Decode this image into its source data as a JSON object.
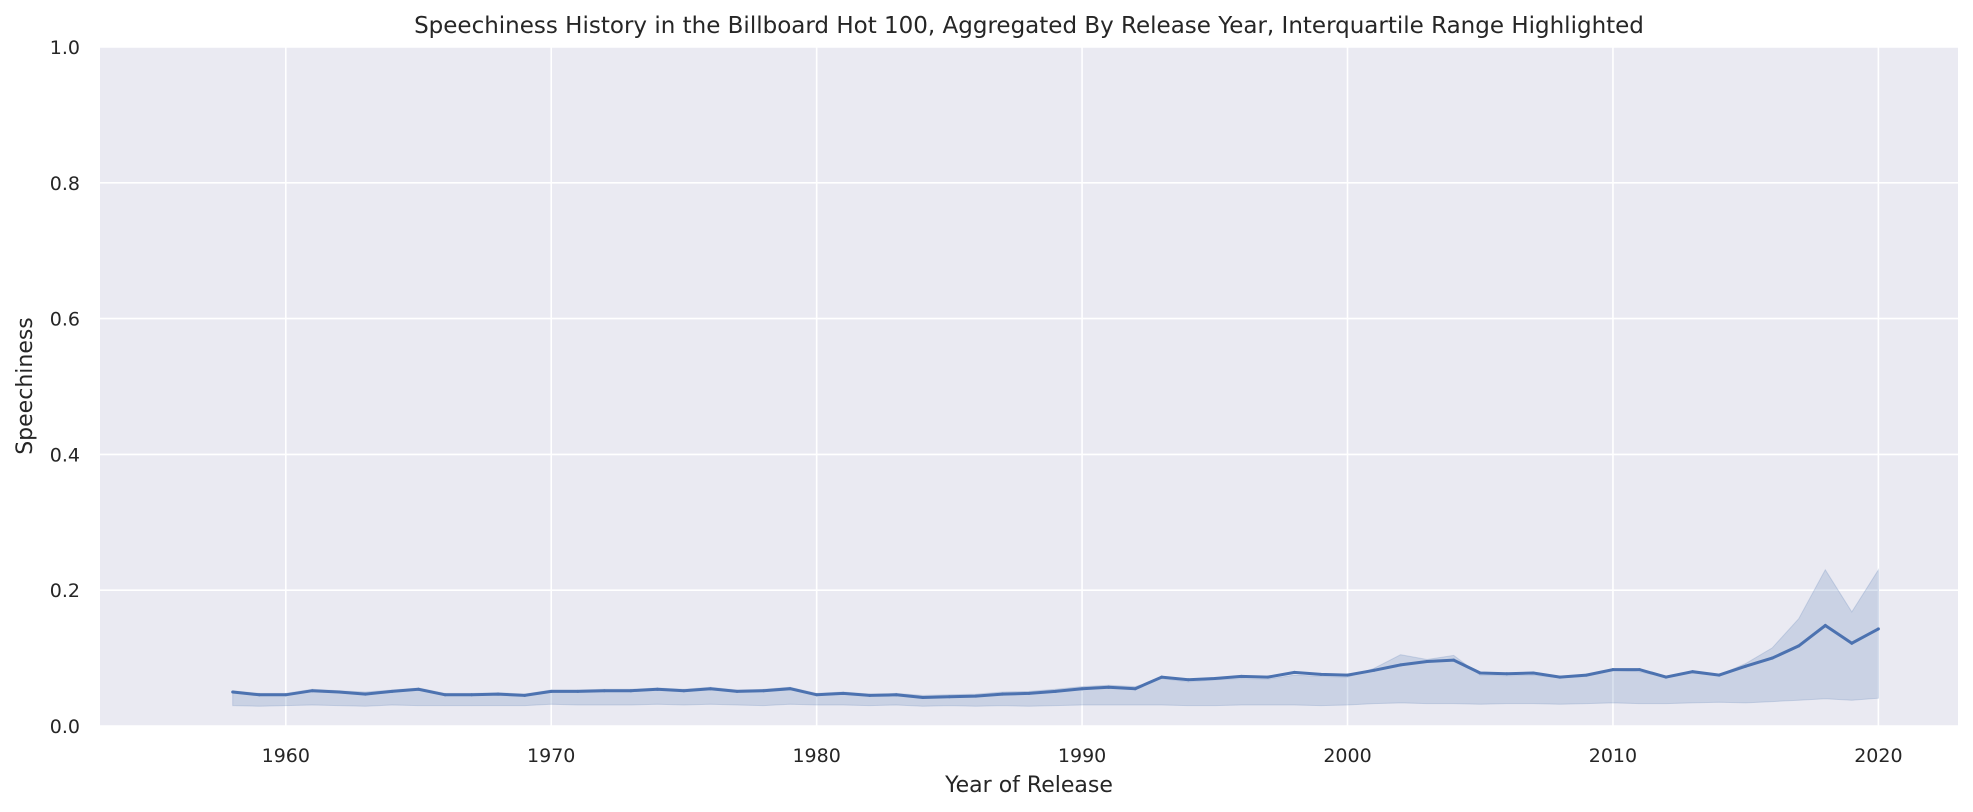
{
  "chart_data": {
    "type": "line",
    "title": "Speechiness History in the Billboard Hot 100, Aggregated By Release Year, Interquartile Range Highlighted",
    "xlabel": "Year of Release",
    "ylabel": "Speechiness",
    "xlim": [
      1953,
      2023
    ],
    "ylim": [
      0.0,
      1.0
    ],
    "xticks": [
      1960,
      1970,
      1980,
      1990,
      2000,
      2010,
      2020
    ],
    "yticks": [
      0.0,
      0.2,
      0.4,
      0.6,
      0.8,
      1.0
    ],
    "xtick_labels": [
      "1960",
      "1970",
      "1980",
      "1990",
      "2000",
      "2010",
      "2020"
    ],
    "ytick_labels": [
      "0.0",
      "0.2",
      "0.4",
      "0.6",
      "0.8",
      "1.0"
    ],
    "grid": true,
    "colors": {
      "plot_background": "#eaeaf2",
      "grid": "#ffffff",
      "line": "#4c72b0",
      "band": "#4c72b0"
    },
    "x": [
      1958,
      1959,
      1960,
      1961,
      1962,
      1963,
      1964,
      1965,
      1966,
      1967,
      1968,
      1969,
      1970,
      1971,
      1972,
      1973,
      1974,
      1975,
      1976,
      1977,
      1978,
      1979,
      1980,
      1981,
      1982,
      1983,
      1984,
      1985,
      1986,
      1987,
      1988,
      1989,
      1990,
      1991,
      1992,
      1993,
      1994,
      1995,
      1996,
      1997,
      1998,
      1999,
      2000,
      2001,
      2002,
      2003,
      2004,
      2005,
      2006,
      2007,
      2008,
      2009,
      2010,
      2011,
      2012,
      2013,
      2014,
      2015,
      2016,
      2017,
      2018,
      2019,
      2020
    ],
    "series": [
      {
        "median": [
          0.05,
          0.046,
          0.046,
          0.052,
          0.05,
          0.047,
          0.051,
          0.054,
          0.046,
          0.046,
          0.047,
          0.045,
          0.051,
          0.051,
          0.052,
          0.052,
          0.054,
          0.052,
          0.055,
          0.051,
          0.052,
          0.055,
          0.046,
          0.048,
          0.045,
          0.046,
          0.042,
          0.043,
          0.044,
          0.047,
          0.048,
          0.051,
          0.055,
          0.057,
          0.055,
          0.072,
          0.068,
          0.07,
          0.073,
          0.072,
          0.079,
          0.076,
          0.075,
          0.082,
          0.09,
          0.095,
          0.097,
          0.078,
          0.077,
          0.078,
          0.072,
          0.075,
          0.083,
          0.083,
          0.072,
          0.08,
          0.075,
          0.088,
          0.1,
          0.118,
          0.148,
          0.122,
          0.143
        ],
        "q1": [
          0.03,
          0.029,
          0.03,
          0.031,
          0.03,
          0.029,
          0.031,
          0.03,
          0.03,
          0.03,
          0.03,
          0.03,
          0.032,
          0.031,
          0.031,
          0.031,
          0.032,
          0.031,
          0.032,
          0.031,
          0.03,
          0.032,
          0.031,
          0.031,
          0.03,
          0.031,
          0.029,
          0.03,
          0.029,
          0.03,
          0.029,
          0.03,
          0.031,
          0.031,
          0.031,
          0.031,
          0.03,
          0.03,
          0.031,
          0.031,
          0.031,
          0.03,
          0.031,
          0.033,
          0.034,
          0.033,
          0.033,
          0.032,
          0.033,
          0.033,
          0.032,
          0.033,
          0.034,
          0.033,
          0.033,
          0.034,
          0.035,
          0.034,
          0.036,
          0.038,
          0.04,
          0.038,
          0.041
        ],
        "q3": [
          0.052,
          0.048,
          0.048,
          0.054,
          0.052,
          0.05,
          0.053,
          0.056,
          0.048,
          0.048,
          0.049,
          0.047,
          0.053,
          0.053,
          0.054,
          0.054,
          0.056,
          0.054,
          0.057,
          0.053,
          0.054,
          0.057,
          0.048,
          0.05,
          0.047,
          0.048,
          0.045,
          0.046,
          0.047,
          0.05,
          0.051,
          0.054,
          0.058,
          0.06,
          0.058,
          0.07,
          0.065,
          0.068,
          0.07,
          0.069,
          0.075,
          0.073,
          0.072,
          0.085,
          0.105,
          0.098,
          0.104,
          0.075,
          0.074,
          0.075,
          0.071,
          0.073,
          0.082,
          0.08,
          0.072,
          0.079,
          0.075,
          0.092,
          0.115,
          0.158,
          0.23,
          0.168,
          0.23
        ]
      }
    ]
  }
}
